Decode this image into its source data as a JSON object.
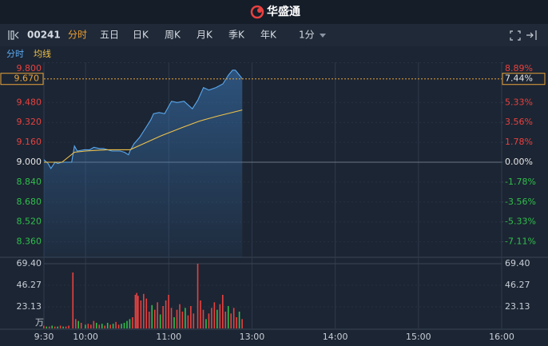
{
  "header": {
    "logo_text": "华盛通"
  },
  "toolbar": {
    "code": "00241",
    "tabs": [
      "分时",
      "五日",
      "日K",
      "周K",
      "月K",
      "季K",
      "年K"
    ],
    "interval": "1分"
  },
  "chart_data": {
    "type": "line",
    "series": [
      {
        "name": "分时",
        "color": "#5aa9f0",
        "x": [
          0,
          3,
          5,
          8,
          10,
          13,
          20,
          22,
          24,
          29,
          33,
          36,
          40,
          43,
          49,
          55,
          58,
          61,
          62,
          65,
          69,
          73,
          77,
          79,
          83,
          87,
          89,
          92,
          96,
          101,
          107,
          111,
          115,
          119,
          124,
          129,
          133,
          136,
          138,
          141,
          143
        ],
        "values": [
          9.02,
          8.99,
          8.95,
          9.0,
          8.99,
          9.0,
          9.0,
          9.13,
          9.09,
          9.1,
          9.1,
          9.12,
          9.11,
          9.11,
          9.09,
          9.09,
          9.08,
          9.06,
          9.09,
          9.15,
          9.2,
          9.27,
          9.34,
          9.39,
          9.4,
          9.39,
          9.43,
          9.49,
          9.48,
          9.49,
          9.43,
          9.5,
          9.6,
          9.58,
          9.6,
          9.63,
          9.7,
          9.74,
          9.74,
          9.7,
          9.67
        ]
      },
      {
        "name": "均线",
        "color": "#f0c24a",
        "x": [
          0,
          13,
          22,
          30,
          45,
          62,
          70,
          84,
          100,
          112,
          125,
          143
        ],
        "values": [
          9.0,
          9.0,
          9.08,
          9.09,
          9.1,
          9.1,
          9.14,
          9.21,
          9.28,
          9.33,
          9.37,
          9.42
        ]
      }
    ],
    "xlim": [
      0,
      330
    ],
    "xticks": [
      {
        "value": 0,
        "label": "9:30"
      },
      {
        "value": 30,
        "label": "10:00"
      },
      {
        "value": 90,
        "label": "11:00"
      },
      {
        "value": 150,
        "label": "13:00"
      },
      {
        "value": 210,
        "label": "14:00"
      },
      {
        "value": 270,
        "label": "15:00"
      },
      {
        "value": 330,
        "label": "16:00"
      }
    ],
    "ylim": [
      8.2,
      9.8
    ],
    "yticks": [
      {
        "value": 9.8,
        "label": "9.800"
      },
      {
        "value": 9.48,
        "label": "9.480"
      },
      {
        "value": 9.32,
        "label": "9.320"
      },
      {
        "value": 9.16,
        "label": "9.160"
      },
      {
        "value": 9.0,
        "label": "9.000"
      },
      {
        "value": 8.84,
        "label": "8.840"
      },
      {
        "value": 8.68,
        "label": "8.680"
      },
      {
        "value": 8.52,
        "label": "8.520"
      },
      {
        "value": 8.36,
        "label": "8.360"
      }
    ],
    "y2lim": [
      -8.89,
      8.89
    ],
    "y2ticks": [
      {
        "value": 8.89,
        "label": "8.89%"
      },
      {
        "value": 5.33,
        "label": "5.33%"
      },
      {
        "value": 3.56,
        "label": "3.56%"
      },
      {
        "value": 1.78,
        "label": "1.78%"
      },
      {
        "value": 0,
        "label": "0.00%"
      },
      {
        "value": -1.78,
        "label": "-1.78%"
      },
      {
        "value": -3.56,
        "label": "-3.56%"
      },
      {
        "value": -5.33,
        "label": "-5.33%"
      },
      {
        "value": -7.11,
        "label": "-7.11%"
      }
    ],
    "current": {
      "price": 9.67,
      "label": "9.670",
      "pct": 7.44,
      "pct_label": "7.44%",
      "color": "#e8a33a"
    },
    "grid": true,
    "volume": {
      "ylim": [
        0,
        69.4
      ],
      "yticks": [
        {
          "value": 69.4,
          "label": "69.40"
        },
        {
          "value": 46.27,
          "label": "46.27"
        },
        {
          "value": 23.13,
          "label": "23.13"
        }
      ],
      "unit": "万",
      "x": [
        0,
        2,
        4,
        6,
        8,
        10,
        12,
        14,
        16,
        18,
        21,
        23,
        25,
        27,
        30,
        32,
        34,
        36,
        38,
        40,
        42,
        44,
        46,
        48,
        50,
        52,
        54,
        56,
        58,
        60,
        62,
        64,
        66,
        67,
        68,
        70,
        72,
        74,
        76,
        78,
        80,
        82,
        84,
        86,
        88,
        90,
        92,
        94,
        96,
        98,
        100,
        102,
        104,
        106,
        108,
        111,
        113,
        115,
        117,
        119,
        121,
        123,
        125,
        127,
        129,
        131,
        133,
        135,
        137,
        139,
        141,
        143
      ],
      "values": [
        3,
        2,
        2,
        3,
        2,
        2,
        3,
        2,
        2,
        3,
        60,
        10,
        8,
        6,
        4,
        5,
        4,
        8,
        6,
        4,
        5,
        3,
        6,
        4,
        5,
        7,
        4,
        5,
        6,
        8,
        10,
        12,
        36,
        38,
        35,
        30,
        37,
        32,
        18,
        25,
        20,
        28,
        15,
        24,
        30,
        36,
        22,
        12,
        20,
        26,
        18,
        22,
        14,
        24,
        16,
        69.4,
        30,
        20,
        10,
        16,
        22,
        28,
        20,
        26,
        36,
        18,
        24,
        16,
        22,
        12,
        18,
        10
      ],
      "colors": [
        "#e8413f",
        "#2fbf4c",
        "#e8413f",
        "#2fbf4c",
        "#e8413f",
        "#2fbf4c",
        "#e8413f",
        "#2fbf4c",
        "#e8413f",
        "#e8413f",
        "#e8413f",
        "#e8413f",
        "#2fbf4c",
        "#e8413f",
        "#2fbf4c",
        "#e8413f",
        "#e8413f",
        "#e8413f",
        "#2fbf4c",
        "#e8413f",
        "#2fbf4c",
        "#e8413f",
        "#2fbf4c",
        "#e8413f",
        "#2fbf4c",
        "#e8413f",
        "#e8413f",
        "#2fbf4c",
        "#2fbf4c",
        "#2fbf4c",
        "#2fbf4c",
        "#e8413f",
        "#e8413f",
        "#e8413f",
        "#e8413f",
        "#e8413f",
        "#e8413f",
        "#e8413f",
        "#e8413f",
        "#2fbf4c",
        "#e8413f",
        "#e8413f",
        "#2fbf4c",
        "#e8413f",
        "#e8413f",
        "#e8413f",
        "#e8413f",
        "#2fbf4c",
        "#e8413f",
        "#e8413f",
        "#e8413f",
        "#2fbf4c",
        "#e8413f",
        "#e8413f",
        "#e8413f",
        "#e8413f",
        "#e8413f",
        "#e8413f",
        "#2fbf4c",
        "#e8413f",
        "#e8413f",
        "#e8413f",
        "#2fbf4c",
        "#e8413f",
        "#e8413f",
        "#e8413f",
        "#2fbf4c",
        "#e8413f",
        "#e8413f",
        "#e8413f",
        "#2fbf4c",
        "#e8413f"
      ]
    }
  }
}
